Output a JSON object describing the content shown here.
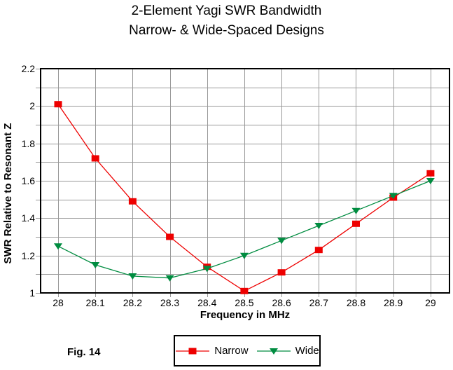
{
  "title": {
    "line1": "2-Element Yagi SWR Bandwidth",
    "line2": "Narrow- & Wide-Spaced Designs"
  },
  "figure_label": "Fig. 14",
  "chart_data": {
    "type": "line",
    "title": "2-Element Yagi SWR Bandwidth — Narrow- & Wide-Spaced Designs",
    "xlabel": "Frequency in MHz",
    "ylabel": "SWR Relative to Resonant Z",
    "x": [
      28.0,
      28.1,
      28.2,
      28.3,
      28.4,
      28.5,
      28.6,
      28.7,
      28.8,
      28.9,
      29.0
    ],
    "series": [
      {
        "name": "Narrow",
        "color": "#ee0000",
        "marker": "square",
        "values": [
          2.01,
          1.72,
          1.49,
          1.3,
          1.14,
          1.01,
          1.11,
          1.23,
          1.37,
          1.51,
          1.64
        ]
      },
      {
        "name": "Wide",
        "color": "#008c40",
        "marker": "triangle-down",
        "values": [
          1.25,
          1.15,
          1.09,
          1.08,
          1.13,
          1.2,
          1.28,
          1.36,
          1.44,
          1.52,
          1.6
        ]
      }
    ],
    "xlim": [
      27.953,
      29.051
    ],
    "ylim": [
      1.0,
      2.2
    ],
    "x_tick_labels": [
      "28",
      "28.1",
      "28.2",
      "28.3",
      "28.4",
      "28.5",
      "28.6",
      "28.7",
      "28.8",
      "28.9",
      "29"
    ],
    "y_tick_values": [
      2.2,
      2.0,
      1.8,
      1.6,
      1.4,
      1.2,
      1.0
    ],
    "y_tick_labels": [
      "2.2",
      "2",
      "1.8",
      "1.6",
      "1.4",
      "1.2",
      "1"
    ],
    "minor_grid_step": 0.1,
    "grid": true,
    "grid_color": "#999999",
    "frame_color": "#000000",
    "legend_position": "bottom"
  }
}
